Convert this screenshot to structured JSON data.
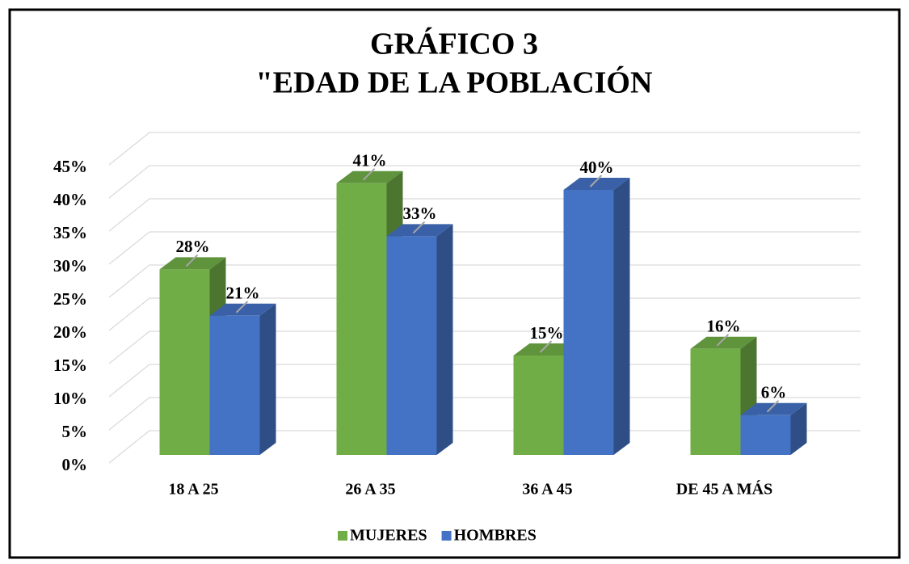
{
  "chart_data": {
    "type": "bar3d",
    "title": [
      "GRÁFICO 3",
      "\"EDAD DE LA POBLACIÓN"
    ],
    "categories": [
      "18 A 25",
      "26 A 35",
      "36 A 45",
      "DE 45 A MÁS"
    ],
    "series": [
      {
        "name": "MUJERES",
        "color": "#70ad47",
        "values": [
          28,
          41,
          15,
          16
        ],
        "value_labels": [
          "28%",
          "41%",
          "15%",
          "16%"
        ]
      },
      {
        "name": "HOMBRES",
        "color": "#4472c4",
        "values": [
          21,
          33,
          40,
          6
        ],
        "value_labels": [
          "21%",
          "33%",
          "40%",
          "6%"
        ]
      }
    ],
    "ylim": [
      0,
      45
    ],
    "yticks": [
      {
        "value": 0,
        "label": "0%"
      },
      {
        "value": 5,
        "label": "5%"
      },
      {
        "value": 10,
        "label": "10%"
      },
      {
        "value": 15,
        "label": "15%"
      },
      {
        "value": 20,
        "label": "20%"
      },
      {
        "value": 25,
        "label": "25%"
      },
      {
        "value": 30,
        "label": "30%"
      },
      {
        "value": 35,
        "label": "35%"
      },
      {
        "value": 40,
        "label": "40%"
      },
      {
        "value": 45,
        "label": "45%"
      }
    ],
    "grid": true,
    "legend": "bottom"
  }
}
